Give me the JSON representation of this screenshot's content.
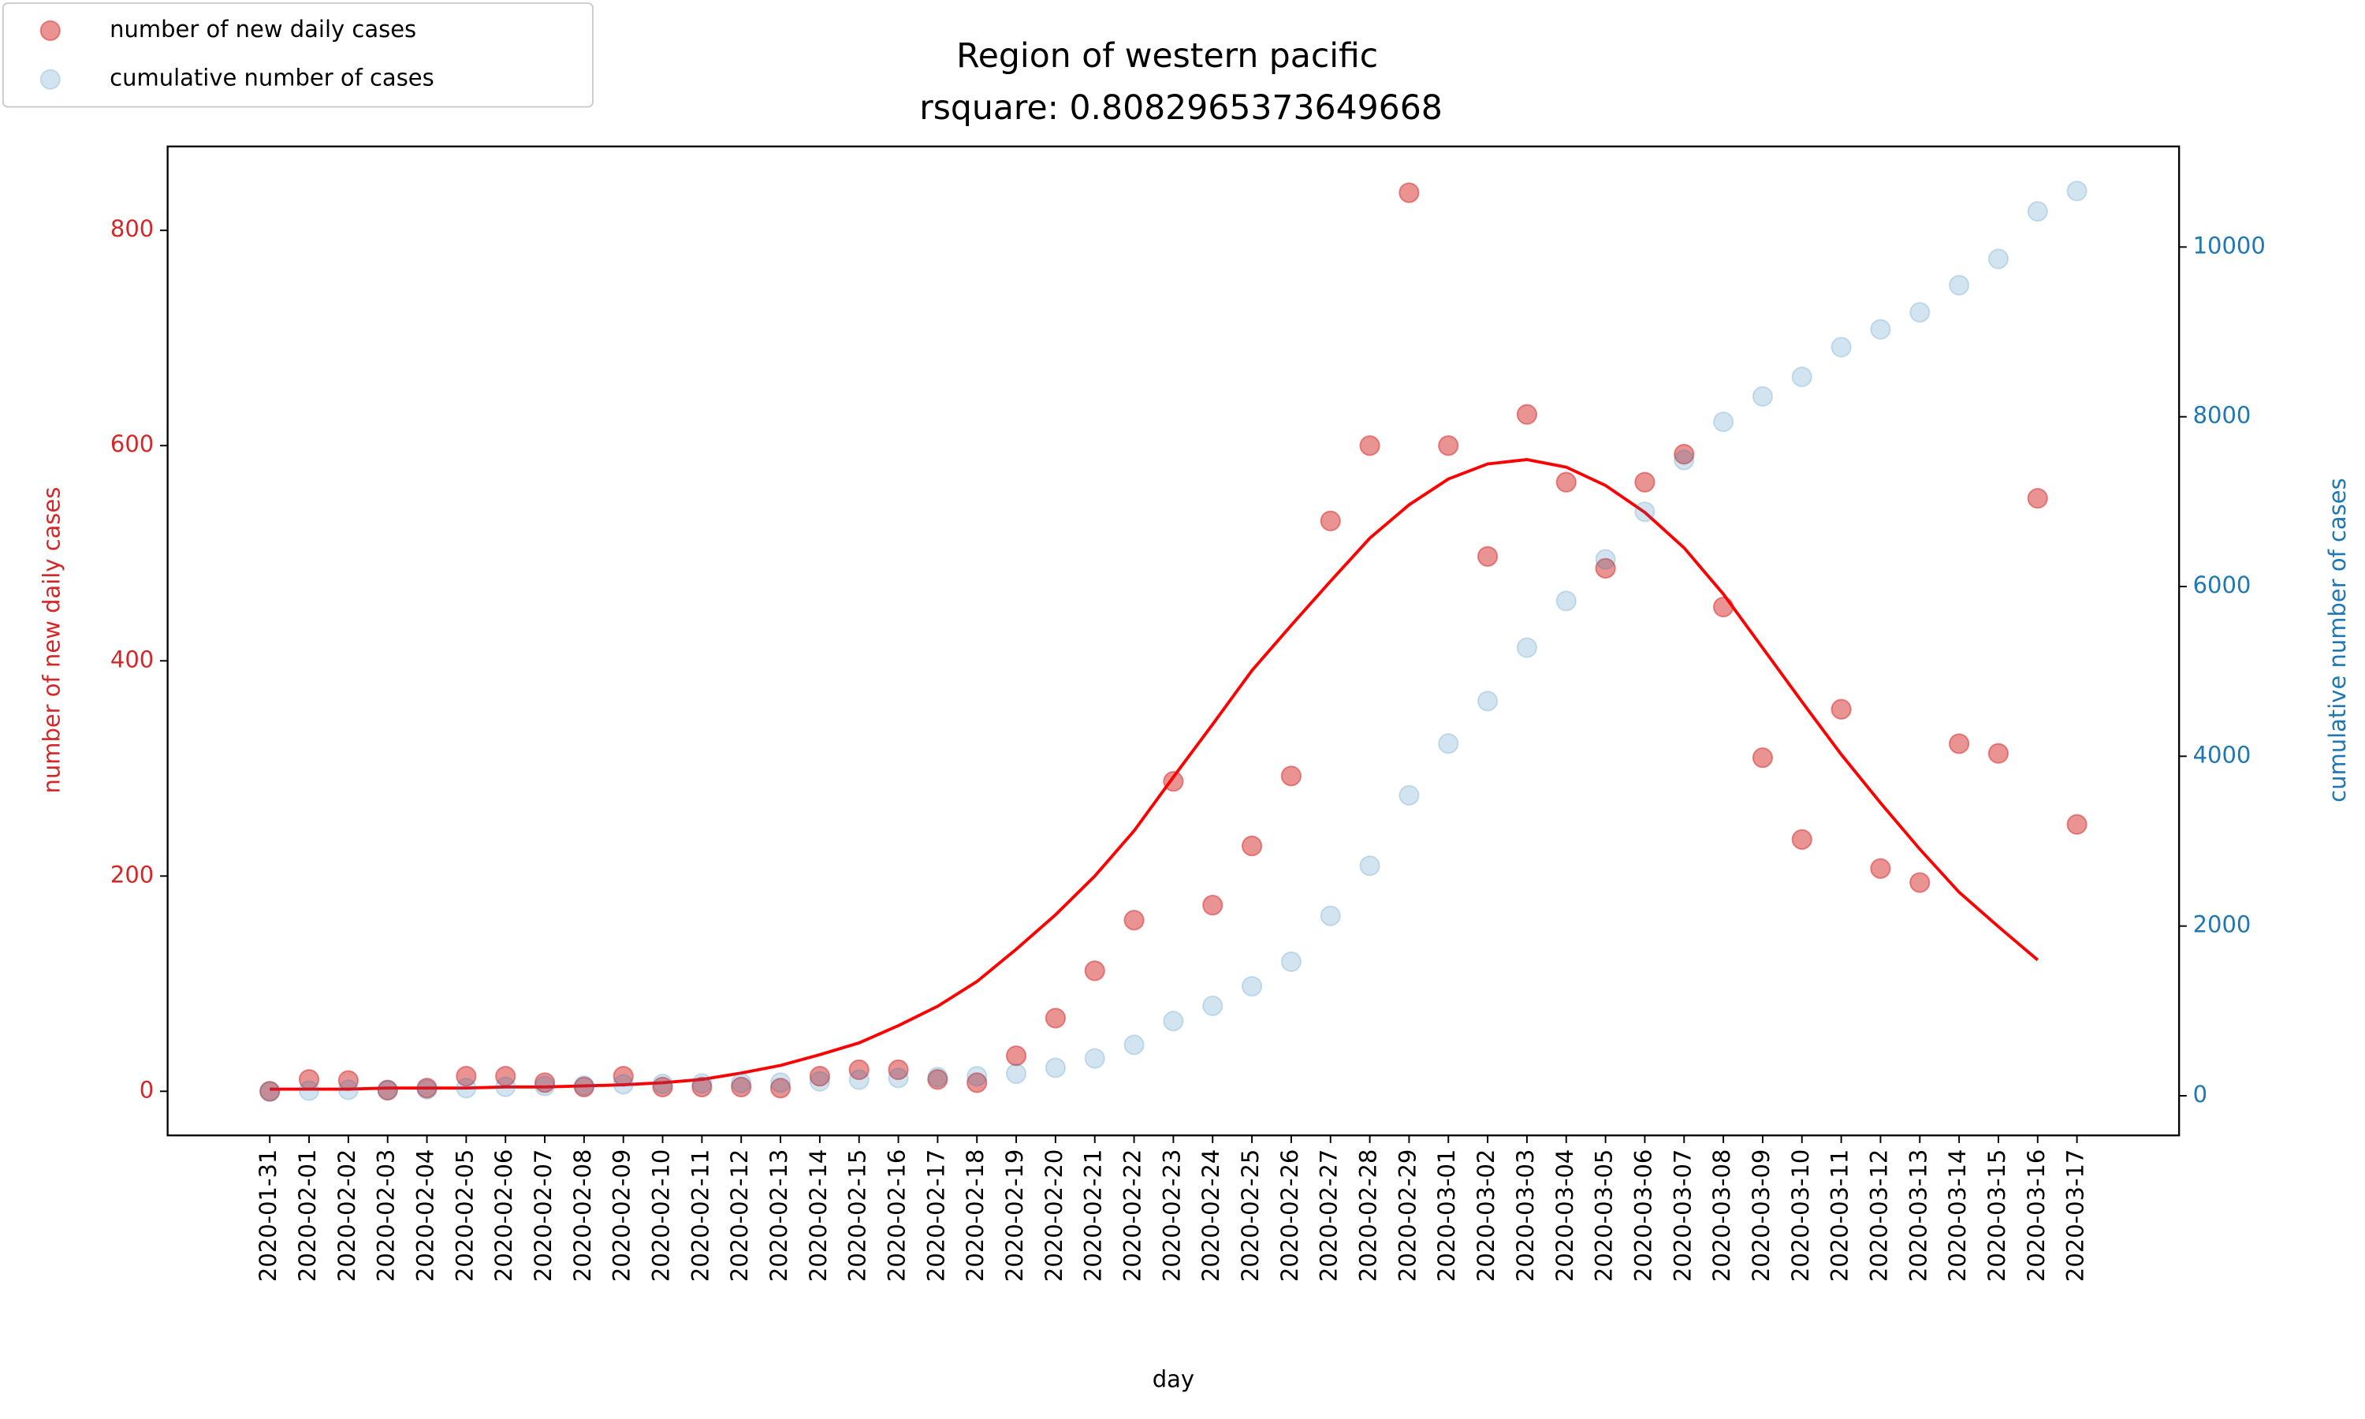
{
  "chart_data": {
    "type": "scatter",
    "title": "Region of western pacific",
    "subtitle": "rsquare: 0.8082965373649668",
    "x_label": "day",
    "y_label": "number of new daily cases",
    "y2_label": "cumulative number of cases",
    "legend": "upper left",
    "categories": [
      "2020-01-31",
      "2020-02-01",
      "2020-02-02",
      "2020-02-03",
      "2020-02-04",
      "2020-02-05",
      "2020-02-06",
      "2020-02-07",
      "2020-02-08",
      "2020-02-09",
      "2020-02-10",
      "2020-02-11",
      "2020-02-12",
      "2020-02-13",
      "2020-02-14",
      "2020-02-15",
      "2020-02-16",
      "2020-02-17",
      "2020-02-18",
      "2020-02-19",
      "2020-02-20",
      "2020-02-21",
      "2020-02-22",
      "2020-02-23",
      "2020-02-24",
      "2020-02-25",
      "2020-02-26",
      "2020-02-27",
      "2020-02-28",
      "2020-02-29",
      "2020-03-01",
      "2020-03-02",
      "2020-03-03",
      "2020-03-04",
      "2020-03-05",
      "2020-03-06",
      "2020-03-07",
      "2020-03-08",
      "2020-03-09",
      "2020-03-10",
      "2020-03-11",
      "2020-03-12",
      "2020-03-13",
      "2020-03-14",
      "2020-03-15",
      "2020-03-16",
      "2020-03-17"
    ],
    "series": [
      {
        "name": "number of new daily cases",
        "color": "#d62728",
        "values": [
          0,
          11,
          10,
          1,
          3,
          14,
          14,
          8,
          4,
          14,
          4,
          4,
          4,
          3,
          14,
          20,
          20,
          11,
          8,
          33,
          68,
          112,
          159,
          288,
          173,
          228,
          293,
          530,
          600,
          835,
          600,
          497,
          629,
          566,
          486,
          566,
          592,
          450,
          310,
          234,
          355,
          207,
          194,
          323,
          314,
          551,
          248
        ]
      },
      {
        "name": "cumulative number of cases",
        "color": "#1f77b4",
        "axis": "y2",
        "values": [
          50,
          60,
          70,
          70,
          75,
          90,
          105,
          115,
          120,
          135,
          140,
          145,
          150,
          155,
          170,
          190,
          210,
          220,
          230,
          260,
          330,
          440,
          600,
          880,
          1060,
          1290,
          1580,
          2120,
          2710,
          3540,
          4150,
          4650,
          5280,
          5830,
          6320,
          6880,
          7490,
          7940,
          8240,
          8470,
          8820,
          9030,
          9230,
          9550,
          9860,
          10420,
          10660
        ]
      },
      {
        "color": "#ff0000",
        "style": "line",
        "values": [
          2,
          2,
          2,
          3,
          3,
          3,
          4,
          4,
          5,
          6,
          8,
          11,
          17,
          24,
          34,
          45,
          61,
          79,
          102,
          132,
          164,
          200,
          242,
          292,
          341,
          391,
          433,
          474,
          514,
          545,
          569,
          583,
          587,
          580,
          563,
          538,
          505,
          462,
          412,
          362,
          313,
          268,
          225,
          185,
          153,
          122,
          null
        ]
      }
    ],
    "ylim": [
      -41,
      878
    ],
    "yticks": [
      0,
      200,
      400,
      600,
      800
    ],
    "y2lim": [
      -467,
      11185
    ],
    "y2ticks": [
      0,
      2000,
      4000,
      6000,
      8000,
      10000
    ]
  }
}
